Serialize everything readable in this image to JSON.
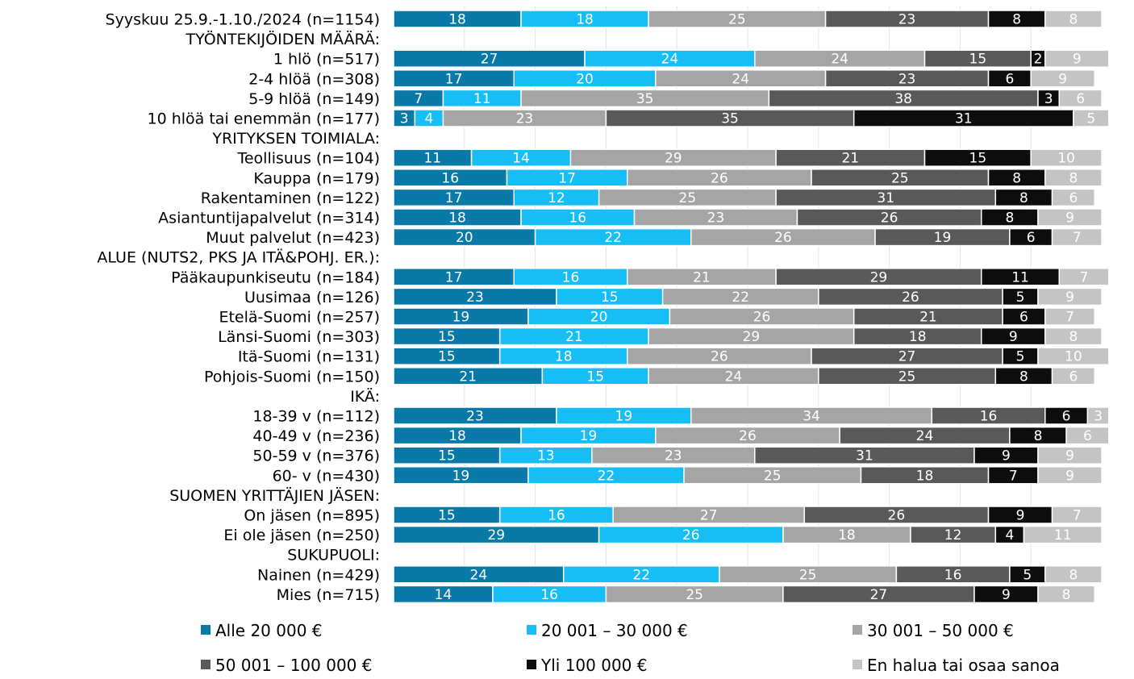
{
  "chart_data": {
    "type": "bar",
    "orientation": "horizontal",
    "stacked": true,
    "normalized": true,
    "xlim": [
      0,
      100
    ],
    "grid": true,
    "legend_position": "bottom",
    "series": [
      {
        "name": "Alle 20 000 €",
        "color": "#0979A7"
      },
      {
        "name": "20 001 – 30 000 €",
        "color": "#16BEF5"
      },
      {
        "name": "30 001 – 50 000 €",
        "color": "#A5A5A5"
      },
      {
        "name": "50 001 – 100 000 €",
        "color": "#595959"
      },
      {
        "name": "Yli 100 000 €",
        "color": "#0D0D0D"
      },
      {
        "name": "En halua tai osaa sanoa",
        "color": "#C4C4C4"
      }
    ],
    "rows": [
      {
        "label": "Syyskuu 25.9.-1.10./2024 (n=1154)",
        "values": [
          18,
          18,
          25,
          23,
          8,
          8
        ]
      },
      {
        "label": "TYÖNTEKIJÖIDEN MÄÄRÄ:",
        "values": null
      },
      {
        "label": "1 hlö (n=517)",
        "values": [
          27,
          24,
          24,
          15,
          2,
          9
        ]
      },
      {
        "label": "2-4 hlöä (n=308)",
        "values": [
          17,
          20,
          24,
          23,
          6,
          9
        ]
      },
      {
        "label": "5-9 hlöä (n=149)",
        "values": [
          7,
          11,
          35,
          38,
          3,
          6
        ]
      },
      {
        "label": "10 hlöä tai enemmän (n=177)",
        "values": [
          3,
          4,
          23,
          35,
          31,
          5
        ]
      },
      {
        "label": "YRITYKSEN TOIMIALA:",
        "values": null
      },
      {
        "label": "Teollisuus (n=104)",
        "values": [
          11,
          14,
          29,
          21,
          15,
          10
        ]
      },
      {
        "label": "Kauppa (n=179)",
        "values": [
          16,
          17,
          26,
          25,
          8,
          8
        ]
      },
      {
        "label": "Rakentaminen (n=122)",
        "values": [
          17,
          12,
          25,
          31,
          8,
          6
        ]
      },
      {
        "label": "Asiantuntijapalvelut (n=314)",
        "values": [
          18,
          16,
          23,
          26,
          8,
          9
        ]
      },
      {
        "label": "Muut palvelut (n=423)",
        "values": [
          20,
          22,
          26,
          19,
          6,
          7
        ]
      },
      {
        "label": "ALUE (NUTS2, PKS JA ITÄ&POHJ. ER.):",
        "values": null
      },
      {
        "label": "Pääkaupunkiseutu (n=184)",
        "values": [
          17,
          16,
          21,
          29,
          11,
          7
        ]
      },
      {
        "label": "Uusimaa (n=126)",
        "values": [
          23,
          15,
          22,
          26,
          5,
          9
        ]
      },
      {
        "label": "Etelä-Suomi (n=257)",
        "values": [
          19,
          20,
          26,
          21,
          6,
          7
        ]
      },
      {
        "label": "Länsi-Suomi (n=303)",
        "values": [
          15,
          21,
          29,
          18,
          9,
          8
        ]
      },
      {
        "label": "Itä-Suomi (n=131)",
        "values": [
          15,
          18,
          26,
          27,
          5,
          10
        ]
      },
      {
        "label": "Pohjois-Suomi (n=150)",
        "values": [
          21,
          15,
          24,
          25,
          8,
          6
        ]
      },
      {
        "label": "IKÄ:",
        "values": null
      },
      {
        "label": "18-39 v (n=112)",
        "values": [
          23,
          19,
          34,
          16,
          6,
          3
        ]
      },
      {
        "label": "40-49 v (n=236)",
        "values": [
          18,
          19,
          26,
          24,
          8,
          6
        ]
      },
      {
        "label": "50-59 v (n=376)",
        "values": [
          15,
          13,
          23,
          31,
          9,
          9
        ]
      },
      {
        "label": "60- v (n=430)",
        "values": [
          19,
          22,
          25,
          18,
          7,
          9
        ]
      },
      {
        "label": "SUOMEN YRITTÄJIEN JÄSEN:",
        "values": null
      },
      {
        "label": "On jäsen (n=895)",
        "values": [
          15,
          16,
          27,
          26,
          9,
          7
        ]
      },
      {
        "label": "Ei ole jäsen (n=250)",
        "values": [
          29,
          26,
          18,
          12,
          4,
          11
        ]
      },
      {
        "label": "SUKUPUOLI:",
        "values": null
      },
      {
        "label": "Nainen (n=429)",
        "values": [
          24,
          22,
          25,
          16,
          5,
          8
        ]
      },
      {
        "label": "Mies (n=715)",
        "values": [
          14,
          16,
          25,
          27,
          9,
          8
        ]
      }
    ]
  }
}
